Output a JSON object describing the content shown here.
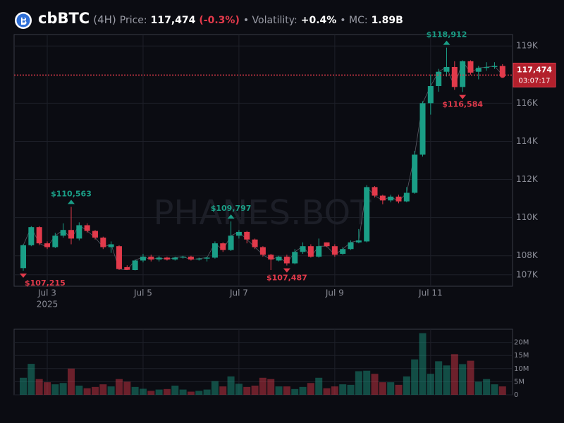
{
  "header": {
    "title": "cbBTC",
    "interval": "(4H)",
    "price_caption": "Price:",
    "price": {
      "value": 117474,
      "label": "117,474"
    },
    "change": {
      "value": -0.3,
      "label": "(-0.3%)"
    },
    "volatility_caption": "• Volatility:",
    "volatility": {
      "value": 0.4,
      "label": "+0.4%"
    },
    "mc_caption": "• MC:",
    "mc": {
      "value": 1890000000,
      "label": "1.89B"
    }
  },
  "watermark": "PHANES.BOT",
  "countdown": "03:07:17",
  "chart_data": {
    "type": "candlestick",
    "categories": [
      null,
      null,
      null,
      "Jul 3",
      null,
      null,
      null,
      null,
      null,
      null,
      null,
      null,
      null,
      null,
      null,
      "Jul 5",
      null,
      null,
      null,
      null,
      null,
      null,
      null,
      null,
      null,
      null,
      null,
      "Jul 7",
      null,
      null,
      null,
      null,
      null,
      null,
      null,
      null,
      null,
      null,
      null,
      "Jul 9",
      null,
      null,
      null,
      null,
      null,
      null,
      null,
      null,
      null,
      null,
      null,
      "Jul 11",
      null,
      null,
      null,
      null,
      null,
      null,
      null,
      null,
      null
    ],
    "year_label": "2025",
    "open": [
      107350,
      108550,
      109500,
      108650,
      108450,
      109050,
      109350,
      108900,
      109600,
      109300,
      108950,
      108450,
      108500,
      107400,
      107250,
      107750,
      107950,
      107800,
      107900,
      107800,
      107900,
      107950,
      107800,
      107850,
      107900,
      108650,
      108300,
      109050,
      109250,
      108850,
      108450,
      108050,
      107750,
      107950,
      107600,
      108200,
      108500,
      107950,
      108700,
      108500,
      108100,
      108350,
      108700,
      108750,
      111600,
      111150,
      110900,
      111100,
      110850,
      111300,
      113300,
      116000,
      116900,
      117650,
      117900,
      116850,
      118200,
      117650,
      117850,
      117900,
      117950
    ],
    "high": [
      108600,
      109550,
      109550,
      108750,
      109200,
      109700,
      110563,
      109750,
      109700,
      109350,
      109000,
      108750,
      108550,
      107500,
      107800,
      108100,
      108050,
      108000,
      107950,
      107950,
      108000,
      108000,
      107900,
      107950,
      108750,
      108700,
      109797,
      109350,
      109300,
      108900,
      108500,
      108100,
      108000,
      108050,
      108350,
      108700,
      108600,
      108900,
      108700,
      108600,
      108450,
      108800,
      109400,
      111700,
      111650,
      111200,
      111200,
      111200,
      111600,
      113500,
      116100,
      117500,
      117800,
      118912,
      118200,
      118250,
      118250,
      117950,
      118150,
      118150,
      118050
    ],
    "low": [
      107215,
      108500,
      108550,
      108350,
      108400,
      108950,
      108600,
      108800,
      109200,
      108850,
      108350,
      108150,
      107250,
      107250,
      107230,
      107650,
      107700,
      107700,
      107750,
      107750,
      107850,
      107750,
      107750,
      107700,
      107850,
      108200,
      108250,
      108900,
      108650,
      108350,
      107950,
      107250,
      107700,
      107487,
      107550,
      108100,
      107900,
      107900,
      108450,
      107950,
      108050,
      108300,
      108650,
      108700,
      111050,
      110700,
      110800,
      110750,
      110800,
      111250,
      113200,
      115400,
      116600,
      117400,
      116700,
      116584,
      117500,
      117250,
      117700,
      117800,
      117400
    ],
    "close": [
      108550,
      109500,
      108650,
      108450,
      109050,
      109350,
      108900,
      109600,
      109300,
      108950,
      108450,
      108600,
      107300,
      107260,
      107750,
      107950,
      107800,
      107900,
      107800,
      107900,
      107950,
      107800,
      107850,
      107900,
      108650,
      108300,
      109050,
      109250,
      108850,
      108450,
      108050,
      107800,
      107950,
      107600,
      108200,
      108500,
      107950,
      108500,
      108500,
      108050,
      108350,
      108700,
      108800,
      111600,
      111150,
      110900,
      111100,
      110850,
      111300,
      113300,
      116000,
      116900,
      117650,
      117900,
      116850,
      118200,
      117600,
      117850,
      117900,
      117950,
      117474
    ],
    "up_color": "#1a9e86",
    "down_color": "#e23a4b",
    "ylim": [
      106400,
      119600
    ],
    "yticks": [
      {
        "value": 107000,
        "label": "107K"
      },
      {
        "value": 108000,
        "label": "108K"
      },
      {
        "value": 110000,
        "label": "110K"
      },
      {
        "value": 112000,
        "label": "112K"
      },
      {
        "value": 114000,
        "label": "114K"
      },
      {
        "value": 116000,
        "label": "116K"
      },
      {
        "value": 119000,
        "label": "119K"
      }
    ],
    "grid": true,
    "annotations": [
      {
        "category": 53,
        "value": 118912,
        "label": "$118,912"
      },
      {
        "category": 55,
        "value": 116584,
        "label": "$116,584"
      },
      {
        "category": 6,
        "value": 110563,
        "label": "$110,563"
      },
      {
        "category": 26,
        "value": 109797,
        "label": "$109,797"
      },
      {
        "category": 33,
        "value": 107487,
        "label": "$107,487"
      },
      {
        "category": 0,
        "value": 107215,
        "label": "$107,215"
      }
    ],
    "volume": {
      "values": [
        6500000,
        11800000,
        6000000,
        4800000,
        4000000,
        4500000,
        10000000,
        3500000,
        2500000,
        3000000,
        4000000,
        3200000,
        6000000,
        5000000,
        3000000,
        2300000,
        1500000,
        2000000,
        2200000,
        3500000,
        2000000,
        1200000,
        1500000,
        2000000,
        5200000,
        3200000,
        7000000,
        4200000,
        3000000,
        3500000,
        6500000,
        6000000,
        3200000,
        3200000,
        2200000,
        3000000,
        4500000,
        6500000,
        2500000,
        3200000,
        4000000,
        3800000,
        9000000,
        9200000,
        8000000,
        4800000,
        4800000,
        3800000,
        7000000,
        13500000,
        23500000,
        8000000,
        12800000,
        11200000,
        15500000,
        11700000,
        13000000,
        5000000,
        6000000,
        4000000,
        3200000
      ],
      "ylim": [
        0,
        25000000
      ],
      "yticks": [
        0,
        {
          "value": 5000000,
          "label": "5M"
        },
        {
          "value": 10000000,
          "label": "10M"
        },
        {
          "value": 15000000,
          "label": "15M"
        },
        {
          "value": 20000000,
          "label": "20M"
        }
      ]
    }
  }
}
